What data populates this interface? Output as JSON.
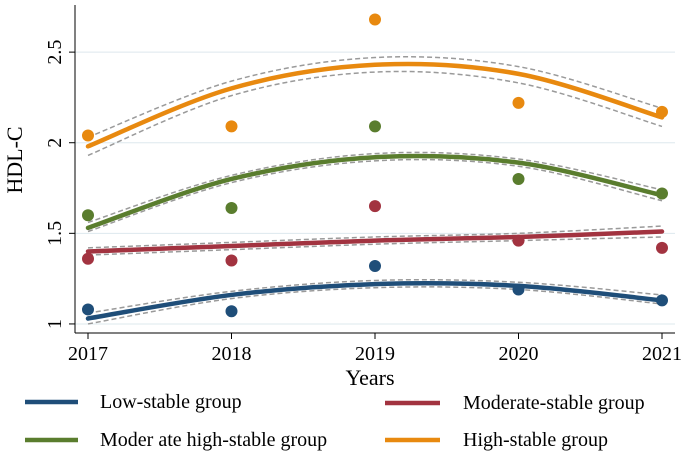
{
  "chart_data": {
    "type": "line",
    "title": "",
    "xlabel": "Years",
    "ylabel": "HDL-C",
    "x": [
      2017,
      2018,
      2019,
      2020,
      2021
    ],
    "x_tick_labels": [
      "2017",
      "2018",
      "2019",
      "2020",
      "2021"
    ],
    "y_ticks": [
      1,
      1.5,
      2,
      2.5
    ],
    "y_tick_labels": [
      "1",
      "1.5",
      "2",
      "2.5"
    ],
    "xlim": [
      2017,
      2021
    ],
    "ylim": [
      0.95,
      2.76
    ],
    "grid": "horizontal",
    "legend_position": "bottom",
    "series": [
      {
        "name": "Low-stable group",
        "color": "#1f4e79",
        "fitted": [
          1.03,
          1.16,
          1.22,
          1.21,
          1.13
        ],
        "ci_upper": [
          1.06,
          1.18,
          1.24,
          1.23,
          1.16
        ],
        "ci_lower": [
          1.0,
          1.14,
          1.2,
          1.19,
          1.11
        ],
        "observed": [
          1.08,
          1.07,
          1.32,
          1.19,
          1.13
        ]
      },
      {
        "name": "Moderate-stable group",
        "color": "#a23340",
        "fitted": [
          1.4,
          1.43,
          1.46,
          1.48,
          1.51
        ],
        "ci_upper": [
          1.42,
          1.45,
          1.48,
          1.5,
          1.54
        ],
        "ci_lower": [
          1.38,
          1.41,
          1.44,
          1.46,
          1.48
        ],
        "observed": [
          1.36,
          1.35,
          1.65,
          1.46,
          1.42
        ]
      },
      {
        "name": "Moder ate high-stable group",
        "color": "#5a7d2e",
        "fitted": [
          1.53,
          1.8,
          1.92,
          1.89,
          1.71
        ],
        "ci_upper": [
          1.56,
          1.82,
          1.94,
          1.91,
          1.74
        ],
        "ci_lower": [
          1.51,
          1.78,
          1.9,
          1.87,
          1.68
        ],
        "observed": [
          1.6,
          1.64,
          2.09,
          1.8,
          1.72
        ]
      },
      {
        "name": "High-stable group",
        "color": "#e8890f",
        "fitted": [
          1.98,
          2.3,
          2.43,
          2.38,
          2.14
        ],
        "ci_upper": [
          2.03,
          2.34,
          2.47,
          2.42,
          2.19
        ],
        "ci_lower": [
          1.93,
          2.26,
          2.39,
          2.33,
          2.09
        ],
        "observed": [
          2.04,
          2.09,
          2.68,
          2.22,
          2.17
        ]
      }
    ]
  }
}
